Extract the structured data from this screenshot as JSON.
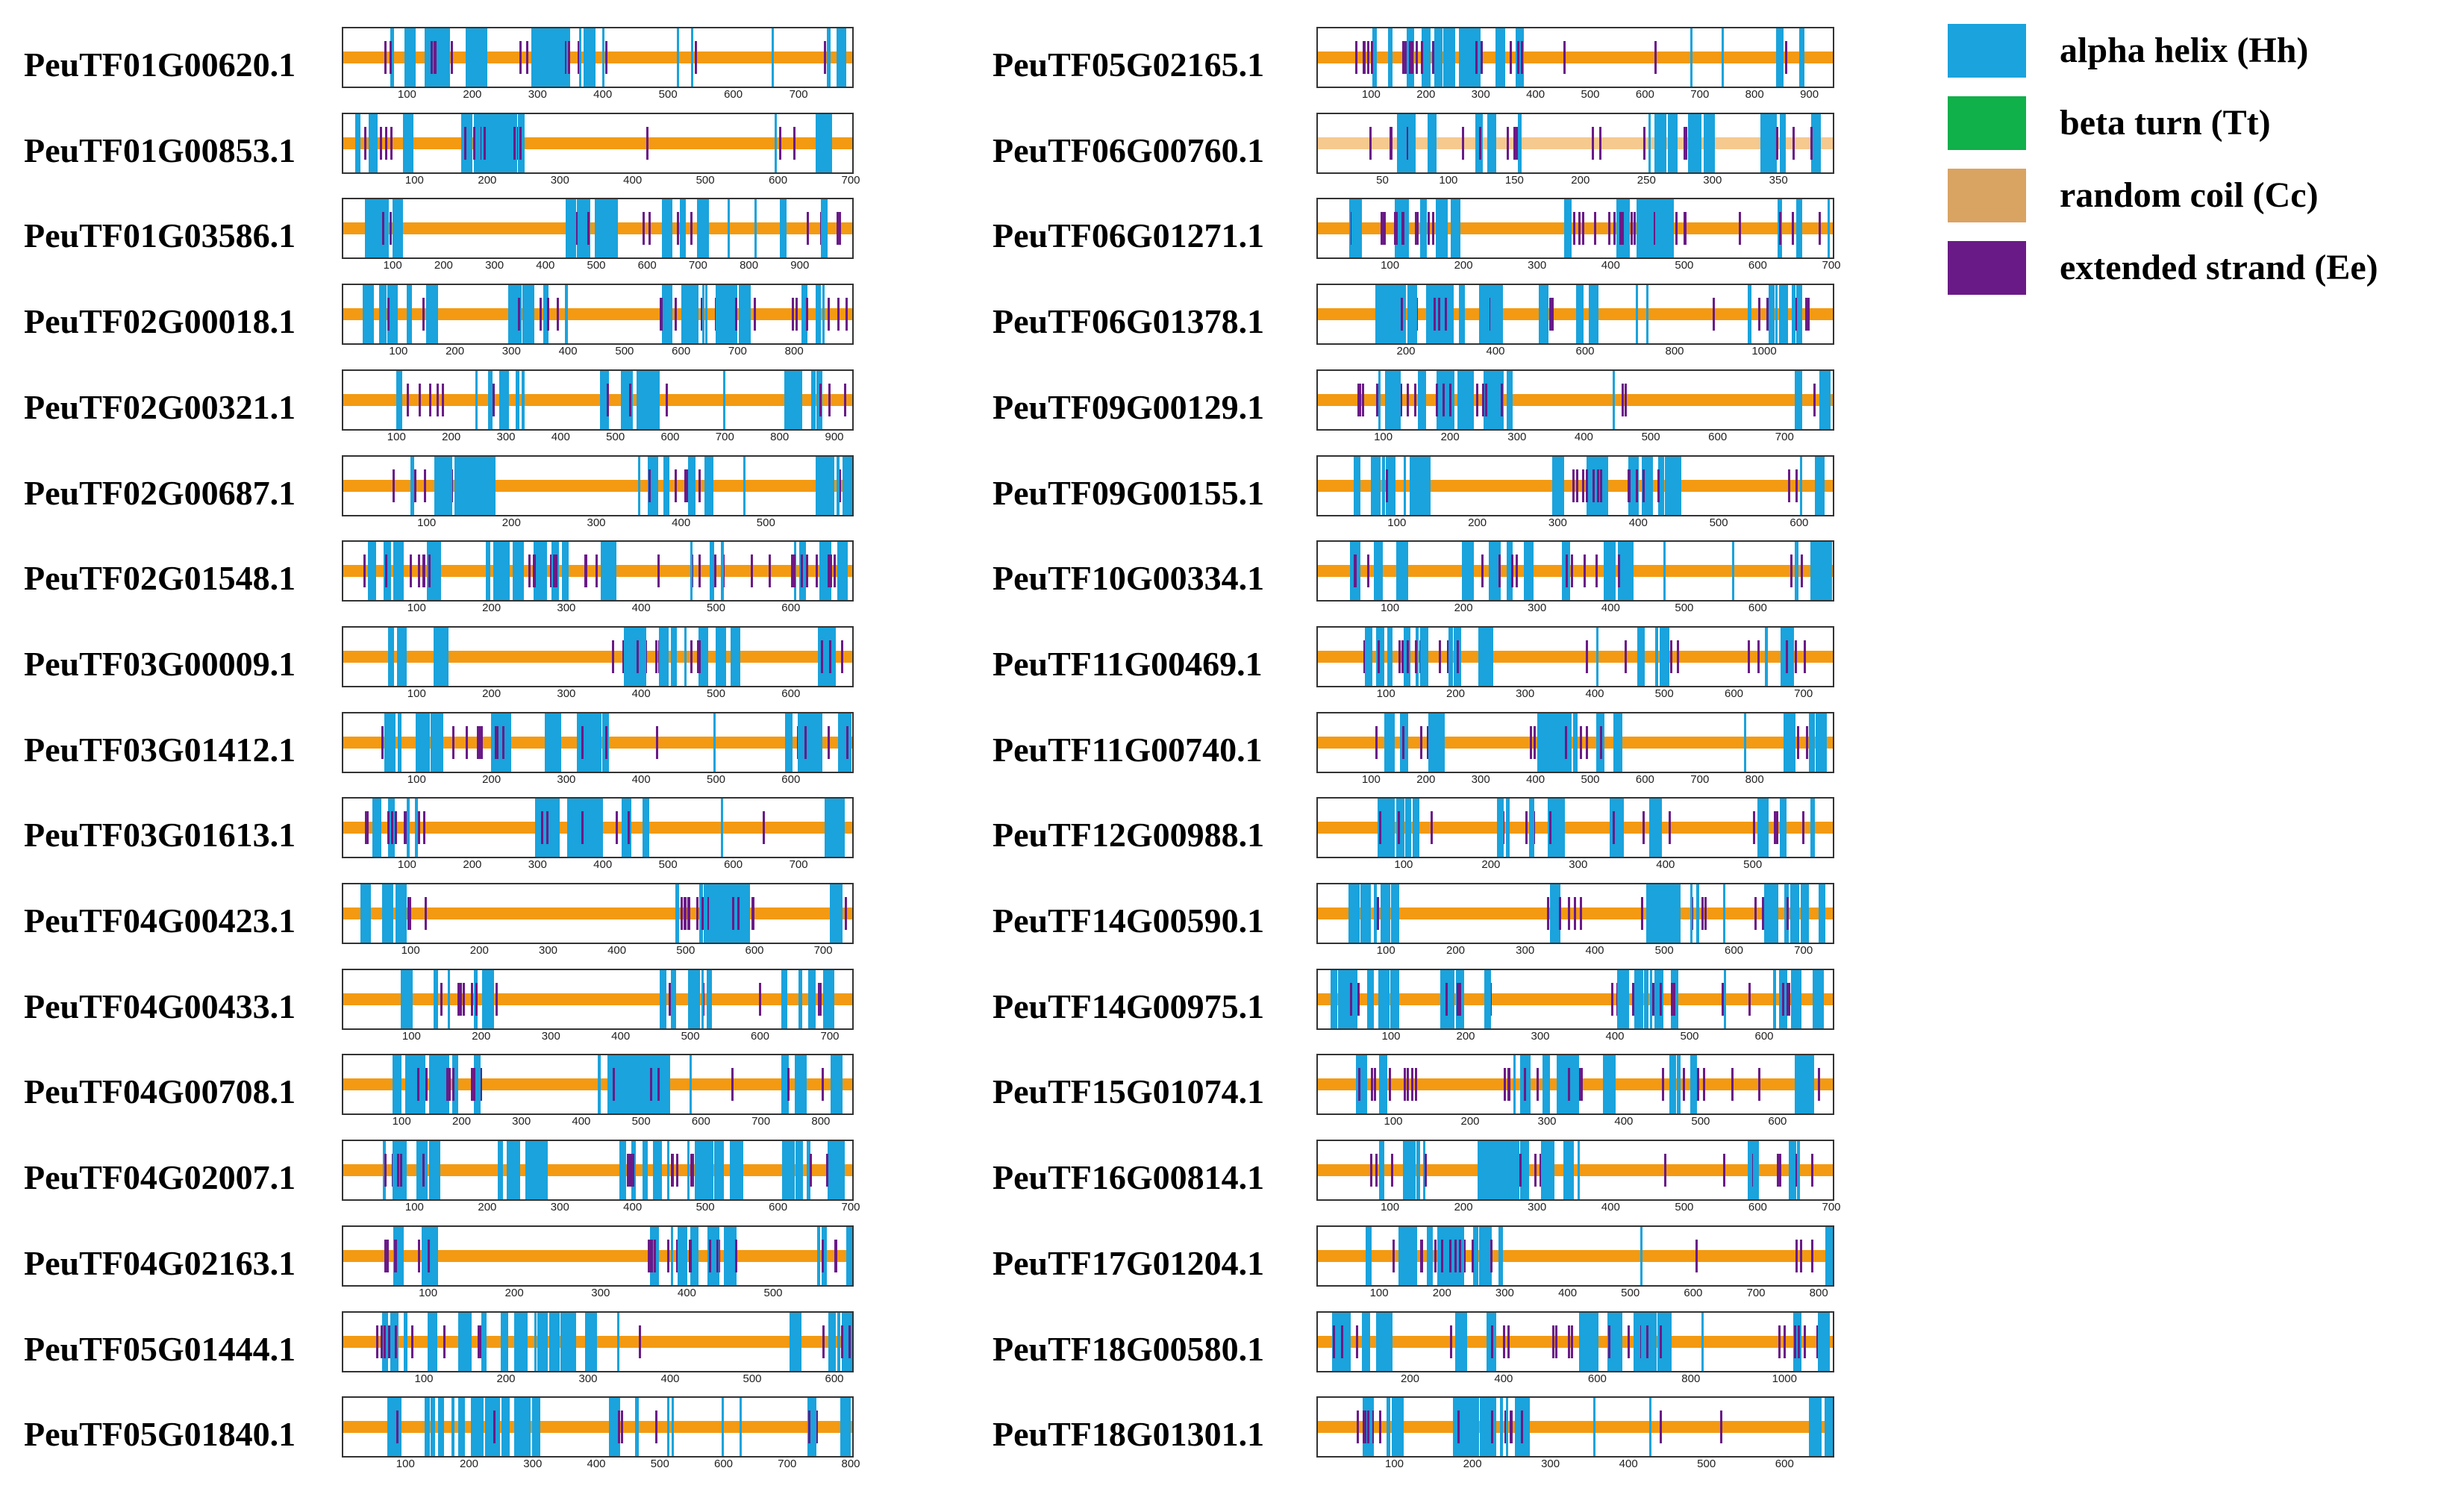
{
  "legend": [
    {
      "key": "helix",
      "label": "alpha helix (Hh)",
      "color": "#1aa3dc"
    },
    {
      "key": "turn",
      "label": "beta turn (Tt)",
      "color": "#10b04a"
    },
    {
      "key": "coil",
      "label": "random coil (Cc)",
      "color": "#d9a362"
    },
    {
      "key": "strand",
      "label": "extended strand (Ee)",
      "color": "#6a1a87"
    }
  ],
  "colors": {
    "base": "#f39a12",
    "coil_light": "#f6c98f",
    "helix": "#1aa3dc",
    "strand": "#6a1a87",
    "border": "#333333"
  },
  "proteins": [
    {
      "id": "PeuTF01G00620.1",
      "length": 780,
      "ticks": [
        100,
        200,
        300,
        400,
        500,
        600,
        700
      ]
    },
    {
      "id": "PeuTF01G00853.1",
      "length": 700,
      "ticks": [
        100,
        200,
        300,
        400,
        500,
        600,
        700
      ]
    },
    {
      "id": "PeuTF01G03586.1",
      "length": 1000,
      "ticks": [
        100,
        200,
        300,
        400,
        500,
        600,
        700,
        800,
        900
      ]
    },
    {
      "id": "PeuTF02G00018.1",
      "length": 900,
      "ticks": [
        100,
        200,
        300,
        400,
        500,
        600,
        700,
        800
      ]
    },
    {
      "id": "PeuTF02G00321.1",
      "length": 930,
      "ticks": [
        100,
        200,
        300,
        400,
        500,
        600,
        700,
        800,
        900
      ]
    },
    {
      "id": "PeuTF02G00687.1",
      "length": 600,
      "ticks": [
        100,
        200,
        300,
        400,
        500
      ]
    },
    {
      "id": "PeuTF02G01548.1",
      "length": 680,
      "ticks": [
        100,
        200,
        300,
        400,
        500,
        600
      ]
    },
    {
      "id": "PeuTF03G00009.1",
      "length": 680,
      "ticks": [
        100,
        200,
        300,
        400,
        500,
        600
      ]
    },
    {
      "id": "PeuTF03G01412.1",
      "length": 680,
      "ticks": [
        100,
        200,
        300,
        400,
        500,
        600
      ]
    },
    {
      "id": "PeuTF03G01613.1",
      "length": 780,
      "ticks": [
        100,
        200,
        300,
        400,
        500,
        600,
        700
      ]
    },
    {
      "id": "PeuTF04G00423.1",
      "length": 740,
      "ticks": [
        100,
        200,
        300,
        400,
        500,
        600,
        700
      ]
    },
    {
      "id": "PeuTF04G00433.1",
      "length": 730,
      "ticks": [
        100,
        200,
        300,
        400,
        500,
        600,
        700
      ]
    },
    {
      "id": "PeuTF04G00708.1",
      "length": 850,
      "ticks": [
        100,
        200,
        300,
        400,
        500,
        600,
        700,
        800
      ]
    },
    {
      "id": "PeuTF04G02007.1",
      "length": 700,
      "ticks": [
        100,
        200,
        300,
        400,
        500,
        600,
        700
      ]
    },
    {
      "id": "PeuTF04G02163.1",
      "length": 590,
      "ticks": [
        100,
        200,
        300,
        400,
        500
      ]
    },
    {
      "id": "PeuTF05G01444.1",
      "length": 620,
      "ticks": [
        100,
        200,
        300,
        400,
        500,
        600
      ]
    },
    {
      "id": "PeuTF05G01840.1",
      "length": 800,
      "ticks": [
        100,
        200,
        300,
        400,
        500,
        600,
        700,
        800
      ]
    },
    {
      "id": "PeuTF05G02165.1",
      "length": 940,
      "ticks": [
        100,
        200,
        300,
        400,
        500,
        600,
        700,
        800,
        900
      ]
    },
    {
      "id": "PeuTF06G00760.1",
      "length": 390,
      "ticks": [
        50,
        100,
        150,
        200,
        250,
        300,
        350
      ]
    },
    {
      "id": "PeuTF06G01271.1",
      "length": 700,
      "ticks": [
        100,
        200,
        300,
        400,
        500,
        600,
        700
      ]
    },
    {
      "id": "PeuTF06G01378.1",
      "length": 1150,
      "ticks": [
        200,
        400,
        600,
        800,
        1000
      ]
    },
    {
      "id": "PeuTF09G00129.1",
      "length": 770,
      "ticks": [
        100,
        200,
        300,
        400,
        500,
        600,
        700
      ]
    },
    {
      "id": "PeuTF09G00155.1",
      "length": 640,
      "ticks": [
        100,
        200,
        300,
        400,
        500,
        600
      ]
    },
    {
      "id": "PeuTF10G00334.1",
      "length": 700,
      "ticks": [
        100,
        200,
        300,
        400,
        500,
        600
      ]
    },
    {
      "id": "PeuTF11G00469.1",
      "length": 740,
      "ticks": [
        100,
        200,
        300,
        400,
        500,
        600,
        700
      ]
    },
    {
      "id": "PeuTF11G00740.1",
      "length": 940,
      "ticks": [
        100,
        200,
        300,
        400,
        500,
        600,
        700,
        800
      ]
    },
    {
      "id": "PeuTF12G00988.1",
      "length": 590,
      "ticks": [
        100,
        200,
        300,
        400,
        500
      ]
    },
    {
      "id": "PeuTF14G00590.1",
      "length": 740,
      "ticks": [
        100,
        200,
        300,
        400,
        500,
        600,
        700
      ]
    },
    {
      "id": "PeuTF14G00975.1",
      "length": 690,
      "ticks": [
        100,
        200,
        300,
        400,
        500,
        600
      ]
    },
    {
      "id": "PeuTF15G01074.1",
      "length": 670,
      "ticks": [
        100,
        200,
        300,
        400,
        500,
        600
      ]
    },
    {
      "id": "PeuTF16G00814.1",
      "length": 700,
      "ticks": [
        100,
        200,
        300,
        400,
        500,
        600,
        700
      ]
    },
    {
      "id": "PeuTF17G01204.1",
      "length": 820,
      "ticks": [
        100,
        200,
        300,
        400,
        500,
        600,
        700,
        800
      ]
    },
    {
      "id": "PeuTF18G00580.1",
      "length": 1100,
      "ticks": [
        200,
        400,
        600,
        800,
        1000
      ]
    },
    {
      "id": "PeuTF18G01301.1",
      "length": 660,
      "ticks": [
        100,
        200,
        300,
        400,
        500,
        600
      ]
    }
  ]
}
